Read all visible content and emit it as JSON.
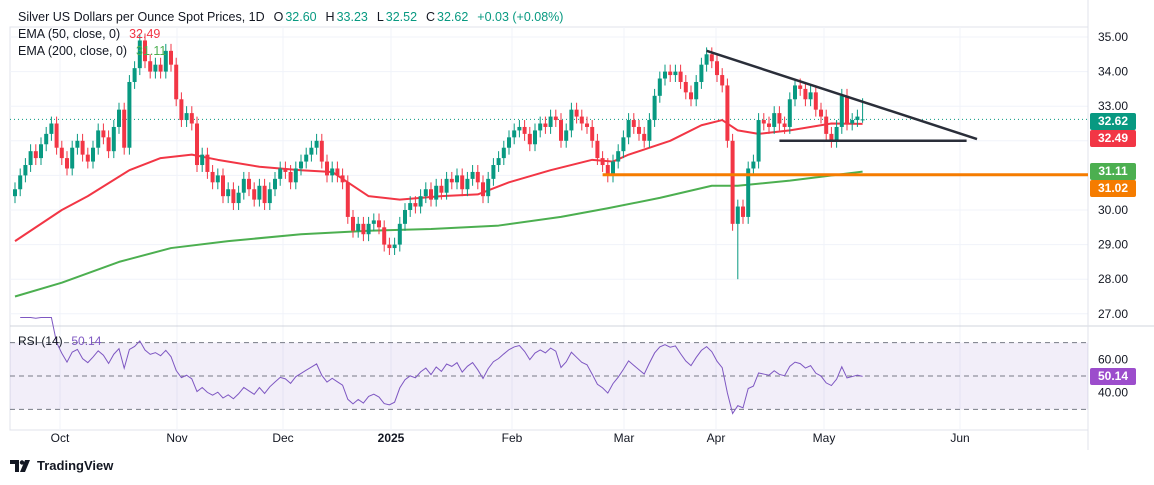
{
  "header": {
    "title": "Silver US Dollars per Ounce Spot Prices, 1D",
    "open_label": "O",
    "open": "32.60",
    "high_label": "H",
    "high": "33.23",
    "low_label": "L",
    "low": "32.52",
    "close_label": "C",
    "close": "32.62",
    "change": "+0.03 (+0.08%)"
  },
  "indicators": {
    "ema50": {
      "label": "EMA (50, close, 0)",
      "value": "32.49",
      "color": "#f23645"
    },
    "ema200": {
      "label": "EMA (200, close, 0)",
      "value": "31.11",
      "color": "#4caf50"
    },
    "rsi": {
      "label": "RSI (14)",
      "value": "50.14",
      "color": "#7e57c2"
    }
  },
  "price_badges": {
    "last": "32.62",
    "ema50": "32.49",
    "ema200": "31.11",
    "level": "31.02"
  },
  "colors": {
    "up": "#089981",
    "down": "#f23645",
    "level": "#f57c00",
    "trendline": "#2a2e39",
    "rsi_badge": "#9c4dcc"
  },
  "footer": {
    "brand": "TradingView",
    "logo_icon": "tradingview-logo-icon"
  },
  "chart_data": {
    "type": "candlestick",
    "interval": "1D",
    "price_axis": {
      "ticks": [
        "35.00",
        "34.00",
        "33.00",
        "30.00",
        "29.00",
        "28.00",
        "27.00"
      ],
      "range": [
        26.6,
        35.3
      ]
    },
    "time_axis": {
      "ticks": [
        "Oct",
        "Nov",
        "Dec",
        "2025",
        "Feb",
        "Mar",
        "Apr",
        "May",
        "Jun"
      ]
    },
    "rsi_axis": {
      "ticks": [
        "60.00",
        "40.00"
      ],
      "upper_band": 70,
      "middle": 50,
      "lower_band": 30
    },
    "closes": [
      30.6,
      31.0,
      31.3,
      31.7,
      31.5,
      31.9,
      32.2,
      32.5,
      31.8,
      31.5,
      31.2,
      31.8,
      32.0,
      31.6,
      31.4,
      31.8,
      32.3,
      32.1,
      31.7,
      32.4,
      32.9,
      31.8,
      33.7,
      34.1,
      34.9,
      34.3,
      34.0,
      34.2,
      34.0,
      34.6,
      34.2,
      33.2,
      32.6,
      32.8,
      32.5,
      31.3,
      31.6,
      31.1,
      30.8,
      31.0,
      30.4,
      30.6,
      30.2,
      30.5,
      30.9,
      30.6,
      30.3,
      30.7,
      30.2,
      30.6,
      30.9,
      31.2,
      31.1,
      30.8,
      31.2,
      31.4,
      31.6,
      31.8,
      32.0,
      31.4,
      31.0,
      31.2,
      31.0,
      30.8,
      29.8,
      29.4,
      29.6,
      29.3,
      29.6,
      29.7,
      29.5,
      29.0,
      28.9,
      29.0,
      29.6,
      30.0,
      30.2,
      30.1,
      30.4,
      30.6,
      30.3,
      30.7,
      30.5,
      30.9,
      30.8,
      31.0,
      30.6,
      30.9,
      31.1,
      30.8,
      30.4,
      30.9,
      31.3,
      31.5,
      31.8,
      32.1,
      32.3,
      32.4,
      32.2,
      31.9,
      32.3,
      32.5,
      32.4,
      32.7,
      32.6,
      32.0,
      32.3,
      32.9,
      32.7,
      32.5,
      32.4,
      32.0,
      31.5,
      31.3,
      31.0,
      31.4,
      31.7,
      32.1,
      32.6,
      32.4,
      32.2,
      32.0,
      32.6,
      33.3,
      33.8,
      34.0,
      33.9,
      34.0,
      33.7,
      33.4,
      33.2,
      33.7,
      34.2,
      34.5,
      34.3,
      33.9,
      33.6,
      32.0,
      29.6,
      30.1,
      29.8,
      31.2,
      31.4,
      32.6,
      32.5,
      32.4,
      32.8,
      32.5,
      32.4,
      33.2,
      33.6,
      33.5,
      33.2,
      33.4,
      32.9,
      32.7,
      32.2,
      32.0,
      32.4,
      33.3,
      32.5,
      32.6,
      32.7,
      32.62
    ],
    "last_bar": {
      "open": 32.6,
      "high": 33.23,
      "low": 32.52,
      "close": 32.62
    },
    "ema50_points": [
      [
        0,
        29.1
      ],
      [
        9,
        30.0
      ],
      [
        14,
        30.4
      ],
      [
        22,
        31.15
      ],
      [
        28,
        31.5
      ],
      [
        34,
        31.6
      ],
      [
        39,
        31.45
      ],
      [
        47,
        31.25
      ],
      [
        55,
        31.15
      ],
      [
        61,
        31.1
      ],
      [
        68,
        30.4
      ],
      [
        74,
        30.3
      ],
      [
        82,
        30.4
      ],
      [
        89,
        30.45
      ],
      [
        95,
        30.8
      ],
      [
        103,
        31.15
      ],
      [
        111,
        31.45
      ],
      [
        115,
        31.4
      ],
      [
        118,
        31.6
      ],
      [
        126,
        32.0
      ],
      [
        132,
        32.45
      ],
      [
        136,
        32.6
      ],
      [
        139,
        32.3
      ],
      [
        143,
        32.2
      ],
      [
        149,
        32.3
      ],
      [
        157,
        32.5
      ],
      [
        163,
        32.49
      ]
    ],
    "ema200_points": [
      [
        0,
        27.5
      ],
      [
        9,
        27.9
      ],
      [
        20,
        28.5
      ],
      [
        30,
        28.9
      ],
      [
        41,
        29.1
      ],
      [
        55,
        29.3
      ],
      [
        68,
        29.4
      ],
      [
        80,
        29.45
      ],
      [
        93,
        29.55
      ],
      [
        105,
        29.8
      ],
      [
        114,
        30.05
      ],
      [
        124,
        30.35
      ],
      [
        134,
        30.7
      ],
      [
        139,
        30.7
      ],
      [
        149,
        30.85
      ],
      [
        163,
        31.11
      ]
    ],
    "drawings": {
      "descending_trendline": {
        "from": [
          133,
          34.6
        ],
        "to": [
          185,
          32.05
        ]
      },
      "horizontal_support": {
        "from": [
          147,
          32.0
        ],
        "to": [
          183,
          32.0
        ]
      },
      "horizontal_level": {
        "from": [
          113,
          31.02
        ],
        "price": 31.02
      }
    }
  }
}
